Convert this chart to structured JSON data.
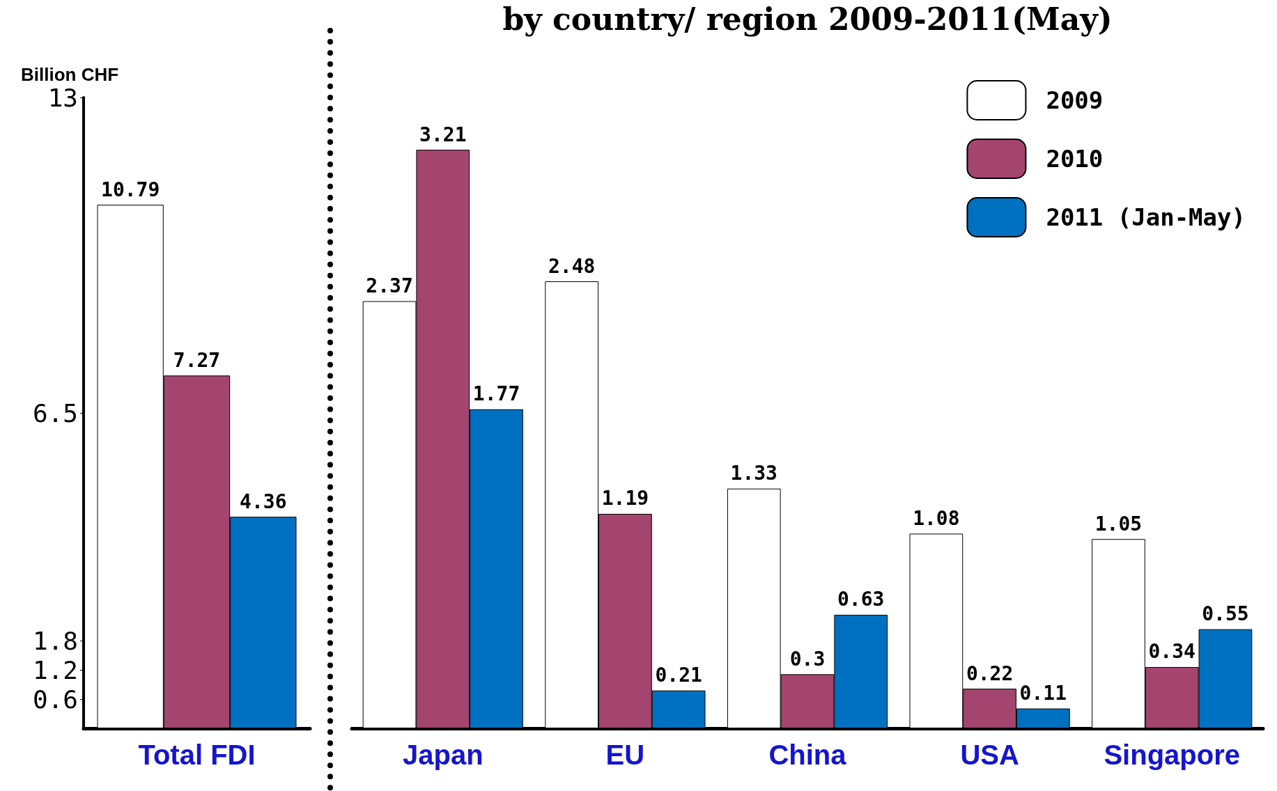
{
  "chart_data": [
    {
      "type": "bar",
      "ylabel": "Billion CHF",
      "categories": [
        "Total FDI"
      ],
      "series": [
        {
          "color": "#ffffff",
          "values": [
            10.79
          ]
        },
        {
          "color": "#a3456f",
          "values": [
            7.27
          ]
        },
        {
          "color": "#0070c0",
          "values": [
            4.36
          ]
        }
      ],
      "ylim": [
        0,
        13
      ],
      "yticks": [
        0.6,
        1.2,
        1.8,
        6.5,
        13
      ],
      "data_labels": true,
      "grid": false,
      "legend": false
    },
    {
      "type": "bar",
      "title": "by country/ region 2009-2011(May)",
      "categories": [
        "Japan",
        "EU",
        "China",
        "USA",
        "Singapore"
      ],
      "series": [
        {
          "name": "2009",
          "color": "#ffffff",
          "values": [
            2.37,
            2.48,
            1.33,
            1.08,
            1.05
          ]
        },
        {
          "name": "2010",
          "color": "#a3456f",
          "values": [
            3.21,
            1.19,
            0.3,
            0.22,
            0.34
          ]
        },
        {
          "name": "2011 (Jan-May)",
          "color": "#0070c0",
          "values": [
            1.77,
            0.21,
            0.63,
            0.11,
            0.55
          ]
        }
      ],
      "tick_labels": "x",
      "data_labels": true,
      "grid": false,
      "legend": "top right"
    }
  ]
}
